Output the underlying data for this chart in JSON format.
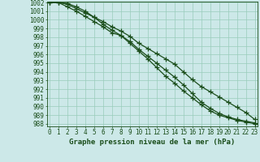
{
  "xlabel": "Graphe pression niveau de la mer (hPa)",
  "x": [
    0,
    1,
    2,
    3,
    4,
    5,
    6,
    7,
    8,
    9,
    10,
    11,
    12,
    13,
    14,
    15,
    16,
    17,
    18,
    19,
    20,
    21,
    22,
    23
  ],
  "series1": [
    1002.0,
    1002.0,
    1001.8,
    1001.3,
    1000.8,
    1000.3,
    999.8,
    999.2,
    998.7,
    998.1,
    997.3,
    996.7,
    996.1,
    995.5,
    994.9,
    994.0,
    993.1,
    992.3,
    991.7,
    991.1,
    990.5,
    989.9,
    989.3,
    988.5
  ],
  "series2": [
    1002.0,
    1002.0,
    1001.5,
    1001.0,
    1000.4,
    999.8,
    999.2,
    998.5,
    998.2,
    997.5,
    996.6,
    995.8,
    995.0,
    994.2,
    993.4,
    992.5,
    991.5,
    990.5,
    989.8,
    989.2,
    988.8,
    988.5,
    988.3,
    988.1
  ],
  "series3": [
    1002.0,
    1002.0,
    1001.9,
    1001.5,
    1001.0,
    1000.3,
    999.5,
    998.8,
    998.2,
    997.3,
    996.4,
    995.5,
    994.5,
    993.5,
    992.7,
    991.8,
    991.0,
    990.2,
    989.5,
    989.0,
    988.7,
    988.4,
    988.2,
    988.0
  ],
  "ylim_min": 988,
  "ylim_max": 1002,
  "yticks": [
    988,
    989,
    990,
    991,
    992,
    993,
    994,
    995,
    996,
    997,
    998,
    999,
    1000,
    1001,
    1002
  ],
  "bg_color": "#cce8e8",
  "grid_color": "#99ccbb",
  "line_color": "#1a4d1a",
  "text_color": "#1a4d1a",
  "line_width": 0.9,
  "marker_size": 4,
  "tick_fontsize": 5.5,
  "xlabel_fontsize": 6.5
}
